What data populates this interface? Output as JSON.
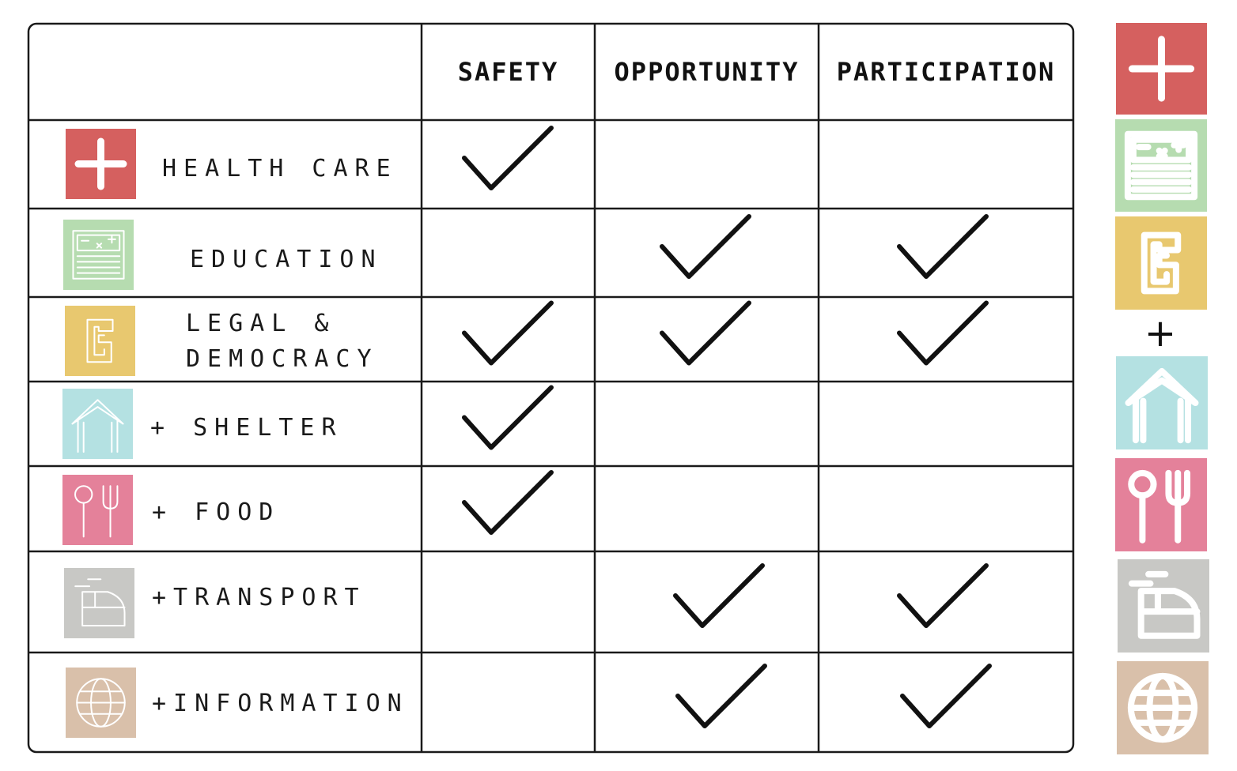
{
  "table": {
    "columns": [
      "SAFETY",
      "OPPORTUNITY",
      "PARTICIPATION"
    ],
    "rows": [
      {
        "id": "health-care",
        "label": [
          "HEALTH CARE"
        ],
        "color": "#d5605f",
        "checks": [
          true,
          false,
          false
        ]
      },
      {
        "id": "education",
        "label": [
          "EDUCATION"
        ],
        "color": "#b6dcb0",
        "checks": [
          false,
          true,
          true
        ]
      },
      {
        "id": "legal-democracy",
        "label": [
          "LEGAL &",
          "DEMOCRACY"
        ],
        "color": "#e8c86f",
        "checks": [
          true,
          true,
          true
        ]
      },
      {
        "id": "shelter",
        "label": [
          "+  SHELTER"
        ],
        "color": "#b4e1e2",
        "checks": [
          true,
          false,
          false
        ]
      },
      {
        "id": "food",
        "label": [
          "+   FOOD"
        ],
        "color": "#e4819a",
        "checks": [
          true,
          false,
          false
        ]
      },
      {
        "id": "transport",
        "label": [
          "+TRANSPORT"
        ],
        "color": "#c8c8c5",
        "checks": [
          false,
          true,
          true
        ]
      },
      {
        "id": "information",
        "label": [
          "+INFORMATION"
        ],
        "color": "#d9c0aa",
        "checks": [
          false,
          true,
          true
        ]
      }
    ]
  },
  "sidebar": {
    "plus_symbol": "+",
    "icons": [
      {
        "id": "health-care",
        "color": "#d5605f",
        "icon": "medical-cross-icon"
      },
      {
        "id": "education",
        "color": "#b6dcb0",
        "icon": "chalkboard-icon"
      },
      {
        "id": "legal-democracy",
        "color": "#e8c86f",
        "icon": "legal-symbol-icon"
      },
      {
        "id": "shelter",
        "color": "#b4e1e2",
        "icon": "house-icon"
      },
      {
        "id": "food",
        "color": "#e4819a",
        "icon": "spoon-fork-icon"
      },
      {
        "id": "transport",
        "color": "#c8c8c5",
        "icon": "train-icon"
      },
      {
        "id": "information",
        "color": "#d9c0aa",
        "icon": "globe-icon"
      }
    ]
  }
}
